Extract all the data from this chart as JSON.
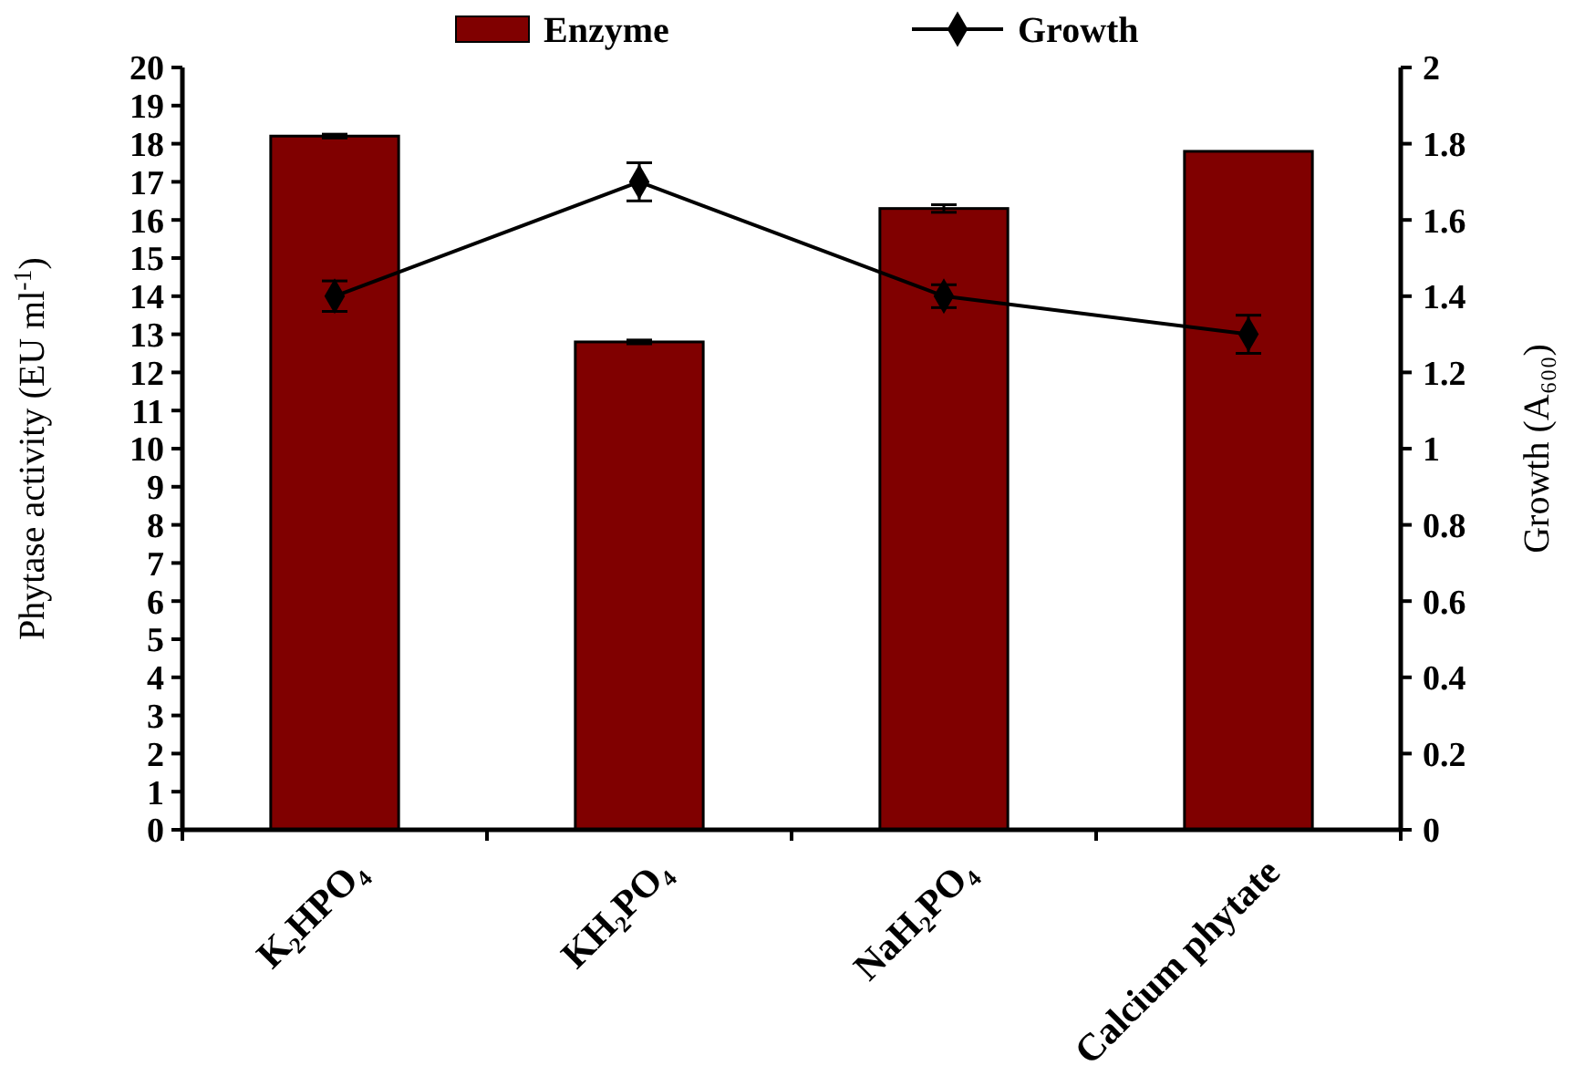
{
  "chart_data": {
    "type": "bar",
    "categories": [
      "K₂HPO₄",
      "KH₂PO₄",
      "NaH₂PO₄",
      "Calcium phytate"
    ],
    "ylabel": "Phytase activity (EU ml$^{-1}$)",
    "y2label": "Growth (A₆₀₀)",
    "ylim": [
      0,
      20
    ],
    "yticks": [
      0,
      1,
      2,
      3,
      4,
      5,
      6,
      7,
      8,
      9,
      10,
      11,
      12,
      13,
      14,
      15,
      16,
      17,
      18,
      19,
      20
    ],
    "y2lim": [
      0,
      2
    ],
    "y2ticks": [
      0,
      0.2,
      0.4,
      0.6,
      0.8,
      1,
      1.2,
      1.4,
      1.6,
      1.8,
      2
    ],
    "legend": "top",
    "grid": false,
    "series": [
      {
        "name": "Enzyme",
        "color": "#800000",
        "values": [
          18.2,
          12.8,
          16.3,
          17.8
        ],
        "errors": [
          0.05,
          0.05,
          0.1,
          null
        ]
      },
      {
        "name": "Growth",
        "type": "line",
        "axis": "y2",
        "color": "#000000",
        "marker": "diamond",
        "values": [
          1.4,
          1.7,
          1.4,
          1.3
        ],
        "errors": [
          0.04,
          0.05,
          0.03,
          0.05
        ]
      }
    ]
  }
}
